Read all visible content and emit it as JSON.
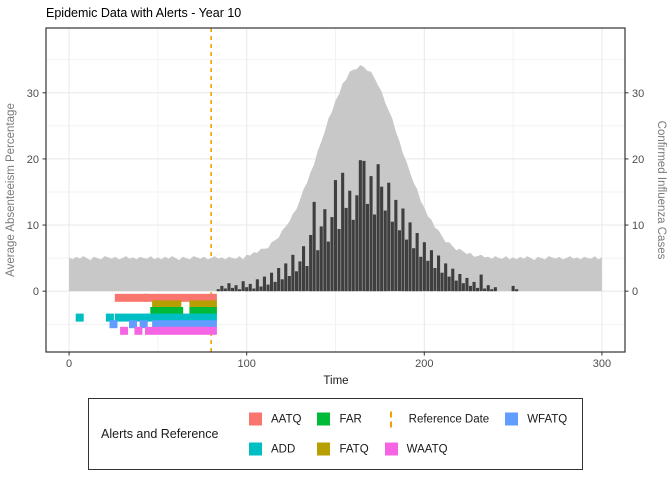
{
  "chart_data": {
    "type": "area+bar+scatter",
    "title": "Epidemic Data with Alerts - Year 10",
    "xlabel": "Time",
    "ylabel_left": "Average Absenteeism Percentage",
    "ylabel_right": "Confirmed Influenza Cases",
    "x_ticks": [
      0,
      100,
      200,
      300
    ],
    "x_minor_ticks": [
      50,
      150,
      250
    ],
    "y_ticks": [
      0,
      10,
      20,
      30
    ],
    "y_minor_ticks": [
      -5,
      5,
      15,
      25,
      35
    ],
    "xlim": [
      -13,
      313
    ],
    "ylim": [
      -9.2,
      39.8
    ],
    "grid": true,
    "colors": {
      "absenteeism_area": "#C8C8C8",
      "cases_bars": "#3F3F3F",
      "reference_line": "#F0A202",
      "panel_border": "#333333",
      "grid_major": "#E8E8E8",
      "grid_minor": "#F2F2F2"
    },
    "reference": {
      "label": "Reference Date",
      "x": 80,
      "color": "#F0A202",
      "style": "dashed"
    },
    "series": {
      "absenteeism": {
        "name": "Average Absenteeism Percentage",
        "t_start": 0,
        "t_step": 2,
        "values": [
          5.1,
          4.8,
          5.2,
          4.9,
          5.3,
          5.0,
          4.7,
          5.2,
          5.0,
          4.8,
          5.3,
          5.1,
          4.9,
          5.2,
          4.8,
          5.0,
          5.3,
          4.9,
          5.1,
          4.8,
          5.2,
          5.0,
          4.9,
          5.3,
          4.8,
          5.1,
          4.8,
          5.2,
          4.9,
          5.3,
          5.0,
          4.7,
          5.2,
          5.0,
          4.8,
          5.3,
          5.1,
          4.9,
          5.2,
          4.8,
          5.0,
          5.3,
          4.9,
          5.1,
          4.8,
          5.2,
          5.0,
          4.9,
          5.3,
          4.8,
          5.5,
          5.4,
          5.9,
          5.8,
          6.4,
          6.4,
          6.5,
          7.4,
          7.7,
          8.1,
          9.2,
          9.8,
          10.5,
          11.7,
          12.4,
          13.8,
          15.4,
          16.4,
          18.0,
          19.2,
          21.2,
          22.6,
          24.1,
          26.1,
          27.1,
          28.8,
          29.8,
          31.4,
          32.0,
          33.2,
          33.5,
          33.6,
          34.2,
          33.9,
          33.3,
          33.2,
          32.2,
          31.1,
          30.2,
          28.5,
          27.3,
          26.1,
          24.1,
          22.7,
          20.8,
          19.6,
          17.9,
          16.4,
          15.4,
          13.6,
          12.7,
          11.3,
          10.8,
          9.6,
          9.2,
          8.3,
          7.4,
          7.4,
          6.8,
          6.2,
          6.4,
          6.0,
          5.6,
          5.8,
          5.2,
          5.3,
          5.5,
          5.1,
          5.2,
          4.9,
          5.3,
          5.0,
          4.9,
          5.3,
          4.8,
          5.1,
          4.8,
          5.2,
          4.9,
          5.3,
          5.0,
          4.7,
          5.2,
          5.0,
          4.8,
          5.3,
          5.1,
          4.9,
          5.2,
          4.8,
          5.0,
          5.3,
          4.9,
          5.1,
          4.8,
          5.2,
          5.0,
          4.9,
          5.3,
          4.8,
          5.1
        ]
      },
      "cases": {
        "name": "Confirmed Influenza Cases",
        "t_start": 0,
        "t_step": 2,
        "values": [
          0,
          0,
          0,
          0,
          0,
          0,
          0,
          0,
          0,
          0,
          0,
          0,
          0,
          0,
          0,
          0,
          0,
          0,
          0,
          0,
          0,
          0,
          0,
          0,
          0,
          0,
          0,
          0,
          0,
          0,
          0,
          0,
          0,
          0,
          0,
          0,
          0,
          0,
          0,
          0,
          0,
          0,
          0.3,
          0.8,
          0.4,
          1.2,
          0.5,
          0.9,
          0.3,
          1.5,
          0.6,
          1.1,
          0.4,
          1.8,
          0.7,
          2.2,
          1.0,
          2.8,
          1.4,
          3.5,
          1.8,
          4.2,
          2.3,
          5.5,
          3.0,
          4.5,
          6.8,
          3.8,
          8.5,
          13.5,
          6.2,
          9.8,
          12.4,
          7.5,
          11.2,
          16.8,
          9.4,
          17.9,
          12.6,
          15.2,
          10.8,
          14.5,
          19.8,
          19.7,
          13.2,
          17.4,
          11.6,
          19.2,
          15.8,
          12.2,
          16.4,
          10.5,
          13.8,
          9.2,
          12.5,
          7.8,
          10.4,
          6.5,
          8.8,
          5.2,
          7.4,
          4.6,
          6.2,
          3.5,
          5.4,
          2.8,
          4.2,
          2.2,
          3.4,
          1.6,
          2.6,
          1.2,
          2.0,
          0.8,
          1.4,
          0.5,
          2.5,
          0.4,
          0.9,
          0.3,
          0.6,
          0,
          0,
          0,
          0,
          0.8,
          0.3,
          0,
          0,
          0,
          0,
          0,
          0,
          0,
          0,
          0,
          0,
          0,
          0,
          0,
          0,
          0,
          0,
          0,
          0,
          0,
          0,
          0,
          0,
          0,
          0
        ]
      }
    },
    "alerts": [
      {
        "label": "AATQ",
        "color": "#F8766D",
        "row_y": -1,
        "segments": [
          [
            28,
            42
          ],
          [
            44,
            81
          ]
        ]
      },
      {
        "label": "FATQ",
        "color": "#B79F00",
        "row_y": -2,
        "segments": [
          [
            49,
            61
          ],
          [
            70,
            81
          ]
        ]
      },
      {
        "label": "FAR",
        "color": "#00BA38",
        "row_y": -3,
        "segments": [
          [
            48,
            62
          ],
          [
            70,
            81
          ]
        ]
      },
      {
        "label": "ADD",
        "color": "#00BFC4",
        "row_y": -4,
        "segments": [
          [
            6,
            6
          ],
          [
            23,
            23
          ],
          [
            28,
            42
          ],
          [
            44,
            81
          ]
        ]
      },
      {
        "label": "WFATQ",
        "color": "#619CFF",
        "row_y": -5,
        "segments": [
          [
            25,
            25
          ],
          [
            36,
            36
          ],
          [
            42,
            42
          ],
          [
            49,
            81
          ]
        ]
      },
      {
        "label": "WAATQ",
        "color": "#F564E3",
        "row_y": -6,
        "segments": [
          [
            31,
            31
          ],
          [
            39,
            39
          ],
          [
            45,
            81
          ]
        ]
      }
    ]
  },
  "legend": {
    "title": "Alerts and Reference",
    "items": [
      {
        "label": "AATQ",
        "color": "#F8766D",
        "type": "square"
      },
      {
        "label": "ADD",
        "color": "#00BFC4",
        "type": "square"
      },
      {
        "label": "FAR",
        "color": "#00BA38",
        "type": "square"
      },
      {
        "label": "FATQ",
        "color": "#B79F00",
        "type": "square"
      },
      {
        "label": "Reference Date",
        "color": "#F0A202",
        "type": "dashed-line"
      },
      {
        "label": "WAATQ",
        "color": "#F564E3",
        "type": "square"
      },
      {
        "label": "WFATQ",
        "color": "#619CFF",
        "type": "square"
      }
    ]
  }
}
